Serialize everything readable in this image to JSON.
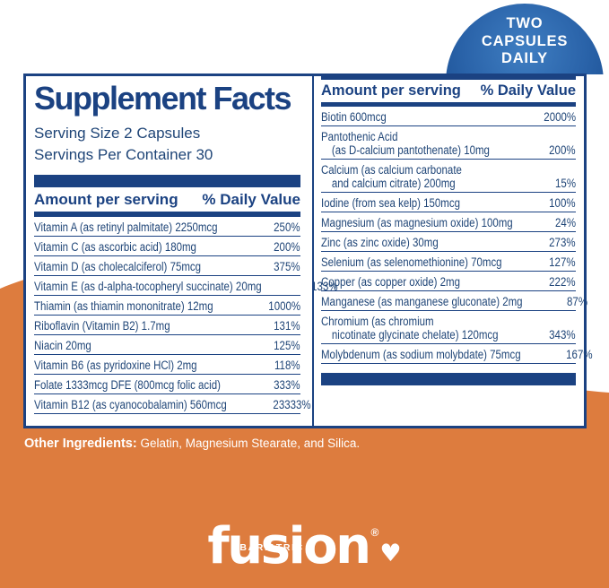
{
  "badge": {
    "line1": "TWO",
    "line2": "CAPSULES",
    "line3": "DAILY"
  },
  "supplement_facts": {
    "title": "Supplement Facts",
    "serving_size": "Serving Size 2 Capsules",
    "servings_per_container": "Servings Per Container 30",
    "column_headers": {
      "amount": "Amount per serving",
      "daily_value": "% Daily Value"
    },
    "left_column": [
      {
        "lines": [
          "Vitamin A (as retinyl palmitate) 2250mcg"
        ],
        "daily_value": "250%"
      },
      {
        "lines": [
          "Vitamin C (as ascorbic acid) 180mg"
        ],
        "daily_value": "200%"
      },
      {
        "lines": [
          "Vitamin D (as cholecalciferol) 75mcg"
        ],
        "daily_value": "375%"
      },
      {
        "lines": [
          "Vitamin E (as d-alpha-tocopheryl succinate) 20mg"
        ],
        "daily_value": "133%"
      },
      {
        "lines": [
          "Thiamin (as thiamin mononitrate) 12mg"
        ],
        "daily_value": "1000%"
      },
      {
        "lines": [
          "Riboflavin (Vitamin B2) 1.7mg"
        ],
        "daily_value": "131%"
      },
      {
        "lines": [
          "Niacin 20mg"
        ],
        "daily_value": "125%"
      },
      {
        "lines": [
          "Vitamin B6 (as pyridoxine HCl) 2mg"
        ],
        "daily_value": "118%"
      },
      {
        "lines": [
          "Folate 1333mcg DFE (800mcg folic acid)"
        ],
        "daily_value": "333%"
      },
      {
        "lines": [
          "Vitamin B12 (as cyanocobalamin) 560mcg"
        ],
        "daily_value": "23333%"
      }
    ],
    "right_column": [
      {
        "lines": [
          "Biotin 600mcg"
        ],
        "daily_value": "2000%"
      },
      {
        "lines": [
          "Pantothenic Acid",
          "(as D-calcium pantothenate) 10mg"
        ],
        "daily_value": "200%"
      },
      {
        "lines": [
          "Calcium (as calcium carbonate",
          "and calcium citrate) 200mg"
        ],
        "daily_value": "15%"
      },
      {
        "lines": [
          "Iodine (from sea kelp) 150mcg"
        ],
        "daily_value": "100%"
      },
      {
        "lines": [
          "Magnesium (as magnesium oxide) 100mg"
        ],
        "daily_value": "24%"
      },
      {
        "lines": [
          "Zinc (as zinc oxide) 30mg"
        ],
        "daily_value": "273%"
      },
      {
        "lines": [
          "Selenium (as selenomethionine) 70mcg"
        ],
        "daily_value": "127%"
      },
      {
        "lines": [
          "Copper (as copper oxide) 2mg"
        ],
        "daily_value": "222%"
      },
      {
        "lines": [
          "Manganese (as manganese gluconate) 2mg"
        ],
        "daily_value": "87%"
      },
      {
        "lines": [
          "Chromium (as chromium",
          "nicotinate glycinate chelate) 120mcg"
        ],
        "daily_value": "343%"
      },
      {
        "lines": [
          "Molybdenum (as sodium molybdate) 75mcg"
        ],
        "daily_value": "167%"
      }
    ]
  },
  "other_ingredients": {
    "label": "Other Ingredients:",
    "value": "Gelatin, Magnesium Stearate, and Silica."
  },
  "logo": {
    "brand_top": "BARIATRIC",
    "brand_main": "fusion",
    "registered_mark": "®",
    "heart": "♥"
  },
  "colors": {
    "navy": "#1b4282",
    "row_text_navy": "#1f4577",
    "orange": "#dd7c3e",
    "badge_blue_light": "#3f7ec2",
    "badge_blue_dark": "#163f7c"
  }
}
